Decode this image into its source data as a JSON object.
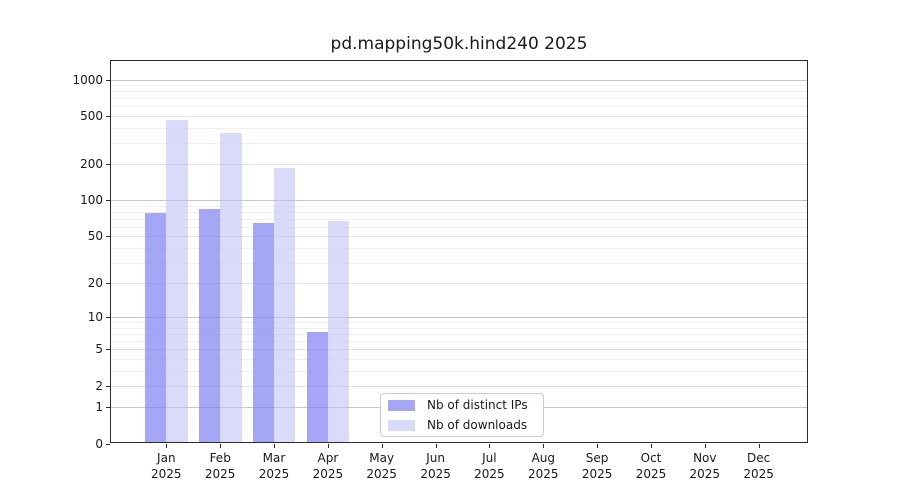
{
  "chart_data": {
    "type": "bar",
    "title": "pd.mapping50k.hind240 2025",
    "categories": [
      "Jan",
      "Feb",
      "Mar",
      "Apr",
      "May",
      "Jun",
      "Jul",
      "Aug",
      "Sep",
      "Oct",
      "Nov",
      "Dec"
    ],
    "x_tick_second_line": "2025",
    "series": [
      {
        "name": "Nb of distinct IPs",
        "color": "#8484f3",
        "alpha": 0.72,
        "values": [
          75,
          81,
          62,
          7,
          0,
          0,
          0,
          0,
          0,
          0,
          0,
          0
        ]
      },
      {
        "name": "Nb of downloads",
        "color": "#bbbbf7",
        "alpha": 0.55,
        "values": [
          445,
          345,
          180,
          65,
          0,
          0,
          0,
          0,
          0,
          0,
          0,
          0
        ]
      }
    ],
    "y_scale": "log10(1+value)",
    "y_ticks": [
      0,
      1,
      2,
      5,
      10,
      20,
      50,
      100,
      200,
      500,
      1000
    ],
    "y_major_gridlines": [
      1,
      10,
      100,
      1000
    ],
    "y_mid_gridlines": [
      2,
      5,
      20,
      50,
      200,
      500
    ],
    "y_minor_gridlines": [
      3,
      4,
      6,
      7,
      8,
      9,
      30,
      40,
      60,
      70,
      80,
      90,
      300,
      400,
      600,
      700,
      800,
      900
    ],
    "ylim": [
      0,
      1420
    ],
    "grid": true,
    "legend_position": "lower-center-inside",
    "colors": {
      "grid_major": "#c6c6c6",
      "grid_mid": "#e2e2e2",
      "grid_minor": "#efefef",
      "spine": "#2b2b2b",
      "text": "#1a1a1a",
      "background": "#ffffff"
    }
  }
}
